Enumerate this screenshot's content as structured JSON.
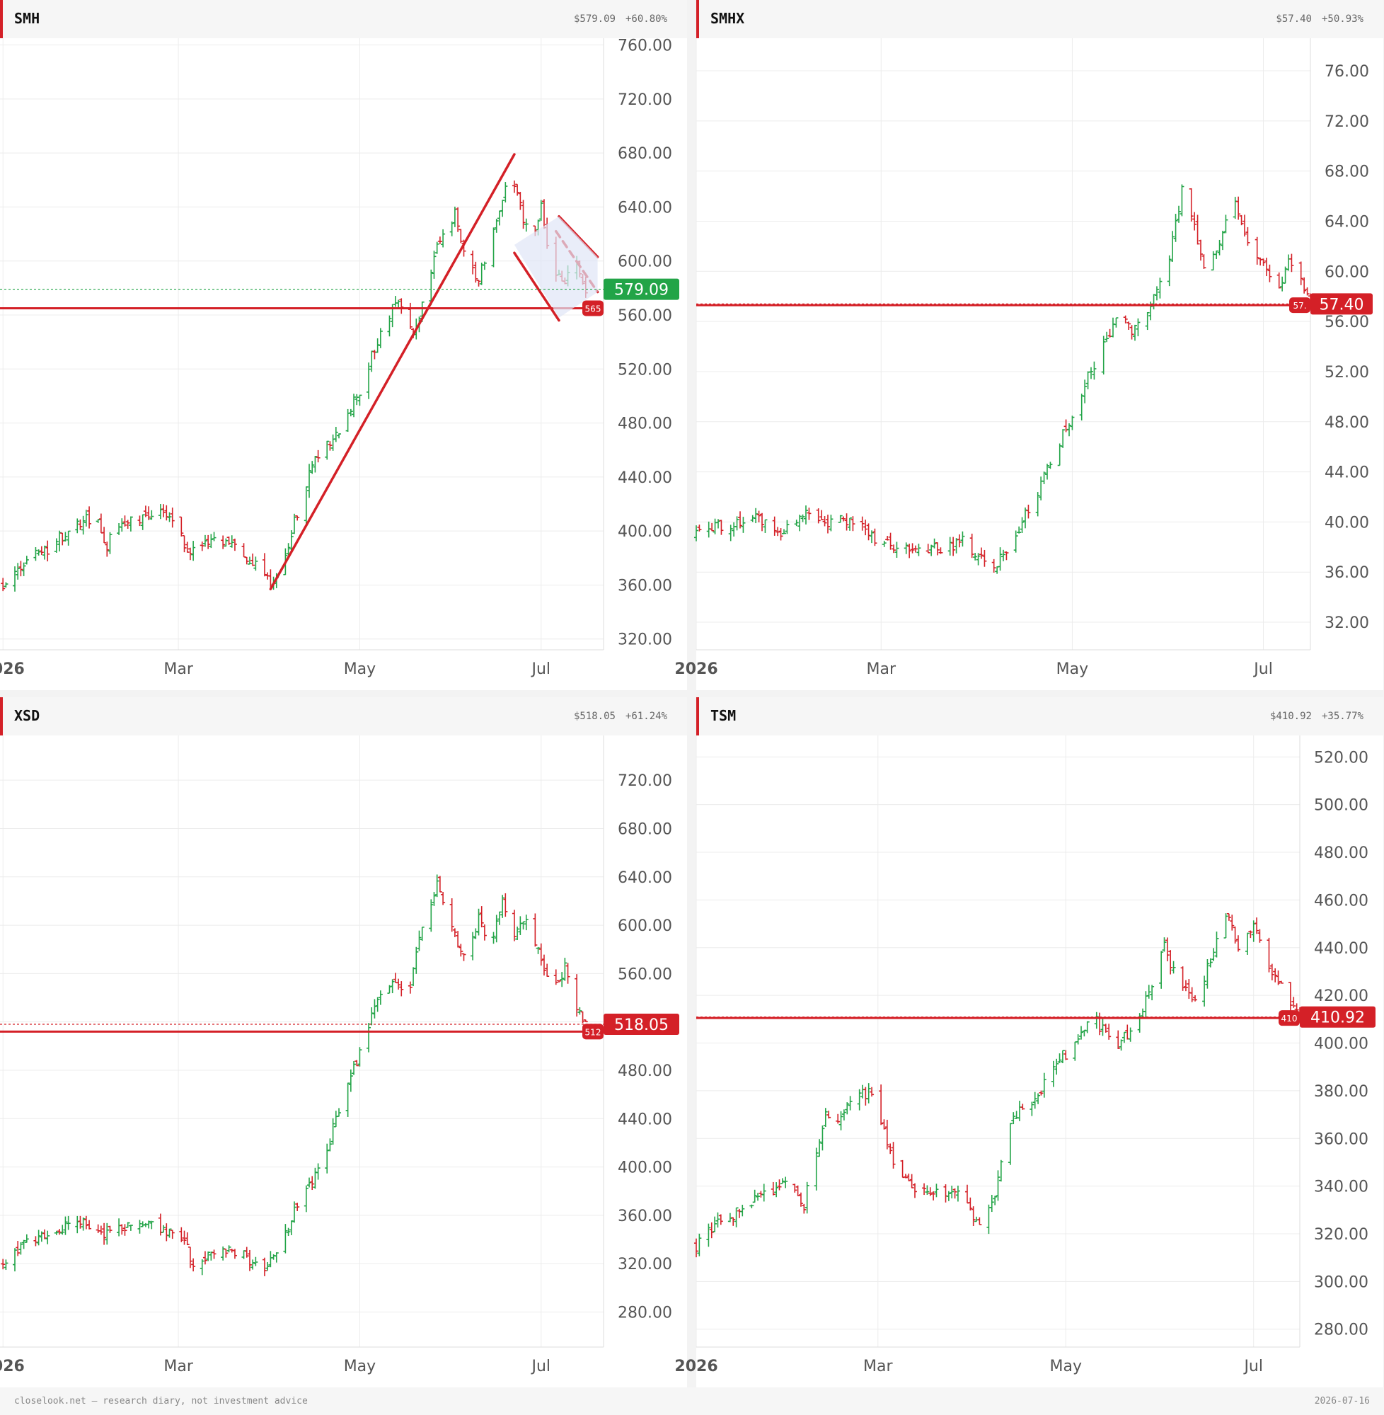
{
  "colors": {
    "up": "#22a447",
    "down": "#d42027",
    "annotation": "#d42027",
    "grid": "#ececec",
    "wedge_fill": "#dfe6f6"
  },
  "footer": {
    "left": "closelook.net — research diary, not investment advice",
    "right": "2026-07-16"
  },
  "panels": [
    {
      "ticker": "SMH",
      "price": "$579.09",
      "change": "+60.80%"
    },
    {
      "ticker": "SMHX",
      "price": "$57.40",
      "change": "+50.93%"
    },
    {
      "ticker": "XSD",
      "price": "$518.05",
      "change": "+61.24%"
    },
    {
      "ticker": "TSM",
      "price": "$410.92",
      "change": "+35.77%"
    }
  ],
  "chart_data": [
    {
      "type": "ohlc",
      "ticker": "SMH",
      "x_labels": [
        "2026",
        "Mar",
        "May",
        "Jul"
      ],
      "x_label_dates": [
        "2026-01-01",
        "2026-03-01",
        "2026-05-01",
        "2026-07-01"
      ],
      "x_range": [
        "2025-12-31",
        "2026-07-22"
      ],
      "y_ticks": [
        320,
        360,
        400,
        440,
        480,
        520,
        560,
        600,
        640,
        680,
        720,
        760
      ],
      "y_labels": [
        "320.00",
        "360.00",
        "400.00",
        "440.00",
        "480.00",
        "520.00",
        "560.00",
        "600.00",
        "640.00",
        "680.00",
        "720.00",
        "760.00"
      ],
      "ylim": [
        312,
        765
      ],
      "last_price": 579.09,
      "last_label": "579.09",
      "last_color": "up",
      "last_line": "dotted-green",
      "level": 565,
      "level_label": "565",
      "keypoints": [
        [
          "2026-01-01",
          360
        ],
        [
          "2026-01-08",
          378
        ],
        [
          "2026-01-15",
          385
        ],
        [
          "2026-01-22",
          398
        ],
        [
          "2026-02-01",
          412
        ],
        [
          "2026-02-05",
          390
        ],
        [
          "2026-02-10",
          405
        ],
        [
          "2026-02-17",
          408
        ],
        [
          "2026-02-23",
          418
        ],
        [
          "2026-03-01",
          398
        ],
        [
          "2026-03-05",
          384
        ],
        [
          "2026-03-12",
          393
        ],
        [
          "2026-03-20",
          388
        ],
        [
          "2026-03-28",
          372
        ],
        [
          "2026-04-01",
          360
        ],
        [
          "2026-04-07",
          390
        ],
        [
          "2026-04-14",
          445
        ],
        [
          "2026-04-22",
          468
        ],
        [
          "2026-05-01",
          505
        ],
        [
          "2026-05-08",
          548
        ],
        [
          "2026-05-14",
          568
        ],
        [
          "2026-05-19",
          548
        ],
        [
          "2026-05-23",
          572
        ],
        [
          "2026-05-27",
          608
        ],
        [
          "2026-06-02",
          635
        ],
        [
          "2026-06-06",
          600
        ],
        [
          "2026-06-10",
          585
        ],
        [
          "2026-06-14",
          618
        ],
        [
          "2026-06-18",
          648
        ],
        [
          "2026-06-21",
          665
        ],
        [
          "2026-06-25",
          630
        ],
        [
          "2026-06-28",
          615
        ],
        [
          "2026-07-01",
          640
        ],
        [
          "2026-07-04",
          600
        ],
        [
          "2026-07-08",
          582
        ],
        [
          "2026-07-12",
          602
        ],
        [
          "2026-07-16",
          579
        ]
      ],
      "annotations": [
        {
          "kind": "hline",
          "y": 565
        },
        {
          "kind": "line",
          "points": [
            [
              "2026-04-01",
              357
            ],
            [
              "2026-06-22",
              679
            ]
          ]
        },
        {
          "kind": "line",
          "points": [
            [
              "2026-06-22",
              606
            ],
            [
              "2026-07-07",
              556
            ]
          ]
        },
        {
          "kind": "line",
          "points": [
            [
              "2026-07-07",
              633
            ],
            [
              "2026-07-20",
              603
            ]
          ]
        },
        {
          "kind": "line",
          "points": [
            [
              "2026-07-06",
              622
            ],
            [
              "2026-07-20",
              577
            ]
          ],
          "dashed": true
        },
        {
          "kind": "polygon",
          "points": [
            [
              "2026-06-22",
              612
            ],
            [
              "2026-07-07",
              633
            ],
            [
              "2026-07-20",
              603
            ],
            [
              "2026-07-20",
              577
            ],
            [
              "2026-07-07",
              558
            ]
          ]
        }
      ]
    },
    {
      "type": "ohlc",
      "ticker": "SMHX",
      "x_labels": [
        "2026",
        "Mar",
        "May",
        "Jul"
      ],
      "x_label_dates": [
        "2026-01-01",
        "2026-03-01",
        "2026-05-01",
        "2026-07-01"
      ],
      "x_range": [
        "2026-01-01",
        "2026-07-16"
      ],
      "y_ticks": [
        32,
        36,
        40,
        44,
        48,
        52,
        56,
        60,
        64,
        68,
        72,
        76
      ],
      "y_labels": [
        "32.00",
        "36.00",
        "40.00",
        "44.00",
        "48.00",
        "52.00",
        "56.00",
        "60.00",
        "64.00",
        "68.00",
        "72.00",
        "76.00"
      ],
      "ylim": [
        29.8,
        78.6
      ],
      "last_price": 57.4,
      "last_label": "57.40",
      "last_color": "down",
      "last_line": "dotted-red",
      "level": 57.3,
      "level_label": "57.",
      "keypoints": [
        [
          "2026-01-01",
          39.0
        ],
        [
          "2026-01-10",
          39.8
        ],
        [
          "2026-01-20",
          40.5
        ],
        [
          "2026-01-28",
          39.2
        ],
        [
          "2026-02-05",
          41.0
        ],
        [
          "2026-02-12",
          40.0
        ],
        [
          "2026-02-20",
          40.3
        ],
        [
          "2026-03-01",
          38.2
        ],
        [
          "2026-03-10",
          37.8
        ],
        [
          "2026-03-20",
          38.0
        ],
        [
          "2026-03-28",
          38.5
        ],
        [
          "2026-04-05",
          36.0
        ],
        [
          "2026-04-12",
          38.5
        ],
        [
          "2026-04-20",
          42.5
        ],
        [
          "2026-04-26",
          46.0
        ],
        [
          "2026-05-01",
          48.5
        ],
        [
          "2026-05-06",
          51.5
        ],
        [
          "2026-05-12",
          54.5
        ],
        [
          "2026-05-16",
          56.5
        ],
        [
          "2026-05-20",
          55.0
        ],
        [
          "2026-05-26",
          57.0
        ],
        [
          "2026-06-01",
          61.0
        ],
        [
          "2026-06-05",
          66.5
        ],
        [
          "2026-06-09",
          63.5
        ],
        [
          "2026-06-13",
          59.5
        ],
        [
          "2026-06-17",
          62.5
        ],
        [
          "2026-06-21",
          66.0
        ],
        [
          "2026-06-25",
          62.5
        ],
        [
          "2026-07-01",
          60.5
        ],
        [
          "2026-07-05",
          58.0
        ],
        [
          "2026-07-09",
          61.0
        ],
        [
          "2026-07-13",
          59.0
        ],
        [
          "2026-07-16",
          57.4
        ]
      ],
      "annotations": [
        {
          "kind": "hline",
          "y": 57.3
        }
      ]
    },
    {
      "type": "ohlc",
      "ticker": "XSD",
      "x_labels": [
        "2026",
        "Mar",
        "May",
        "Jul"
      ],
      "x_label_dates": [
        "2026-01-01",
        "2026-03-01",
        "2026-05-01",
        "2026-07-01"
      ],
      "x_range": [
        "2025-12-31",
        "2026-07-22"
      ],
      "y_ticks": [
        280,
        320,
        360,
        400,
        440,
        480,
        520,
        560,
        600,
        640,
        680,
        720
      ],
      "y_labels": [
        "280.00",
        "320.00",
        "360.00",
        "400.00",
        "440.00",
        "480.00",
        "",
        "560.00",
        "600.00",
        "640.00",
        "680.00",
        "720.00"
      ],
      "ylim": [
        251,
        757
      ],
      "last_price": 518.05,
      "last_label": "518.05",
      "last_color": "down",
      "last_line": "dotted-red",
      "level": 512,
      "level_label": "512",
      "keypoints": [
        [
          "2026-01-01",
          320
        ],
        [
          "2026-01-10",
          340
        ],
        [
          "2026-01-20",
          348
        ],
        [
          "2026-01-28",
          355
        ],
        [
          "2026-02-04",
          344
        ],
        [
          "2026-02-10",
          350
        ],
        [
          "2026-02-17",
          355
        ],
        [
          "2026-02-23",
          348
        ],
        [
          "2026-03-01",
          345
        ],
        [
          "2026-03-06",
          322
        ],
        [
          "2026-03-12",
          330
        ],
        [
          "2026-03-22",
          328
        ],
        [
          "2026-03-29",
          312
        ],
        [
          "2026-04-04",
          332
        ],
        [
          "2026-04-10",
          368
        ],
        [
          "2026-04-17",
          395
        ],
        [
          "2026-04-24",
          445
        ],
        [
          "2026-05-01",
          495
        ],
        [
          "2026-05-06",
          530
        ],
        [
          "2026-05-12",
          555
        ],
        [
          "2026-05-17",
          535
        ],
        [
          "2026-05-21",
          590
        ],
        [
          "2026-05-27",
          632
        ],
        [
          "2026-06-02",
          590
        ],
        [
          "2026-06-06",
          575
        ],
        [
          "2026-06-10",
          605
        ],
        [
          "2026-06-14",
          580
        ],
        [
          "2026-06-18",
          625
        ],
        [
          "2026-06-22",
          590
        ],
        [
          "2026-06-26",
          605
        ],
        [
          "2026-07-01",
          570
        ],
        [
          "2026-07-05",
          548
        ],
        [
          "2026-07-09",
          565
        ],
        [
          "2026-07-13",
          535
        ],
        [
          "2026-07-16",
          518
        ]
      ],
      "annotations": [
        {
          "kind": "hline",
          "y": 512
        }
      ]
    },
    {
      "type": "ohlc",
      "ticker": "TSM",
      "x_labels": [
        "2026",
        "Mar",
        "May",
        "Jul"
      ],
      "x_label_dates": [
        "2026-01-01",
        "2026-03-01",
        "2026-05-01",
        "2026-07-01"
      ],
      "x_range": [
        "2026-01-01",
        "2026-07-16"
      ],
      "y_ticks": [
        280,
        300,
        320,
        340,
        360,
        380,
        400,
        420,
        440,
        460,
        480,
        500,
        520
      ],
      "y_labels": [
        "280.00",
        "300.00",
        "320.00",
        "340.00",
        "360.00",
        "380.00",
        "400.00",
        "420.00",
        "440.00",
        "460.00",
        "480.00",
        "500.00",
        "520.00"
      ],
      "ylim": [
        272.5,
        529
      ],
      "last_price": 410.92,
      "last_label": "410.92",
      "last_color": "down",
      "last_line": "dotted-red",
      "level": 410.5,
      "level_label": "410",
      "keypoints": [
        [
          "2026-01-01",
          315
        ],
        [
          "2026-01-08",
          325
        ],
        [
          "2026-01-15",
          330
        ],
        [
          "2026-01-22",
          335
        ],
        [
          "2026-01-29",
          342
        ],
        [
          "2026-02-05",
          332
        ],
        [
          "2026-02-12",
          372
        ],
        [
          "2026-02-16",
          365
        ],
        [
          "2026-02-20",
          375
        ],
        [
          "2026-02-26",
          380
        ],
        [
          "2026-03-02",
          368
        ],
        [
          "2026-03-06",
          348
        ],
        [
          "2026-03-12",
          340
        ],
        [
          "2026-03-20",
          338
        ],
        [
          "2026-03-28",
          335
        ],
        [
          "2026-04-03",
          325
        ],
        [
          "2026-04-08",
          338
        ],
        [
          "2026-04-13",
          368
        ],
        [
          "2026-04-20",
          375
        ],
        [
          "2026-04-27",
          390
        ],
        [
          "2026-05-04",
          400
        ],
        [
          "2026-05-10",
          412
        ],
        [
          "2026-05-16",
          398
        ],
        [
          "2026-05-22",
          405
        ],
        [
          "2026-05-28",
          420
        ],
        [
          "2026-06-02",
          440
        ],
        [
          "2026-06-07",
          425
        ],
        [
          "2026-06-12",
          418
        ],
        [
          "2026-06-17",
          435
        ],
        [
          "2026-06-22",
          455
        ],
        [
          "2026-06-26",
          440
        ],
        [
          "2026-07-01",
          450
        ],
        [
          "2026-07-05",
          432
        ],
        [
          "2026-07-10",
          425
        ],
        [
          "2026-07-16",
          411
        ]
      ],
      "annotations": [
        {
          "kind": "hline",
          "y": 410.5
        }
      ]
    }
  ]
}
